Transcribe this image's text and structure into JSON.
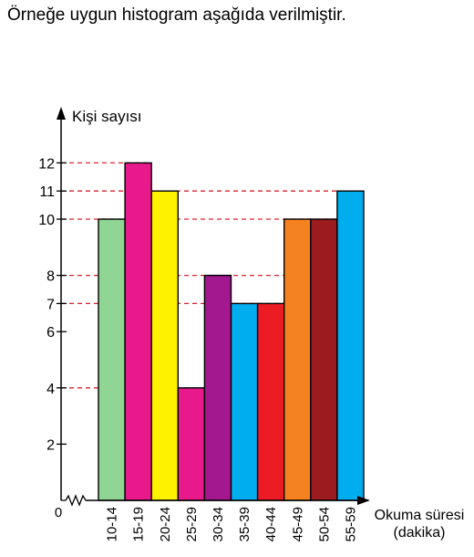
{
  "intro_text": "Örneğe uygun histogram aşağıda verilmiştir.",
  "chart_data": {
    "type": "bar",
    "ylabel": "Kişi sayısı",
    "xlabel_line1": "Okuma süresi",
    "xlabel_line2": "(dakika)",
    "origin_label": "0",
    "categories": [
      "10-14",
      "15-19",
      "20-24",
      "25-29",
      "30-34",
      "35-39",
      "40-44",
      "45-49",
      "50-54",
      "55-59"
    ],
    "values": [
      10,
      12,
      11,
      4,
      8,
      7,
      7,
      10,
      10,
      11
    ],
    "bar_colors": [
      "#8fd694",
      "#e8198b",
      "#fff200",
      "#e8198b",
      "#a3188f",
      "#00aeef",
      "#ed1c24",
      "#f58220",
      "#9b1b1f",
      "#00aeef"
    ],
    "y_ticks": [
      2,
      4,
      6,
      7,
      8,
      10,
      11,
      12
    ],
    "dashed_levels": [
      4,
      7,
      8,
      10,
      11,
      12
    ],
    "dashed_color": "#d7262c",
    "ylim": [
      0,
      12
    ],
    "grid": false,
    "legend": "none"
  }
}
